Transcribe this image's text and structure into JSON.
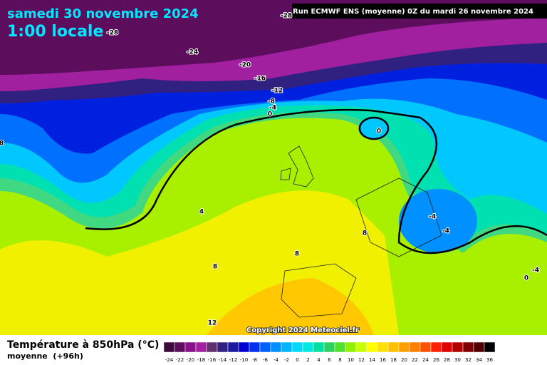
{
  "header": {
    "title": "samedi 30 novembre 2024",
    "subtitle": "1:00 locale",
    "run": "Run ECMWF ENS (moyenne) 0Z du mardi 26 novembre 2024"
  },
  "map": {
    "copyright": "Copyright 2024 Meteociel.fr",
    "contour_labels": [
      -28,
      -28,
      -24,
      -20,
      -16,
      -12,
      -8,
      -4,
      0,
      0,
      4,
      8,
      8,
      8,
      12,
      -4,
      -4,
      -4,
      0,
      8
    ]
  },
  "legend": {
    "title": "Température à 850hPa (°C)",
    "note": "moyenne  (+96h)",
    "scale": [
      {
        "value": -24,
        "color": "#3d0a3d"
      },
      {
        "value": -22,
        "color": "#5c0d5c"
      },
      {
        "value": -20,
        "color": "#8a0f8a"
      },
      {
        "value": -18,
        "color": "#a020a0"
      },
      {
        "value": -16,
        "color": "#603070"
      },
      {
        "value": -14,
        "color": "#302080"
      },
      {
        "value": -12,
        "color": "#1a1aa0"
      },
      {
        "value": -10,
        "color": "#0000d0"
      },
      {
        "value": -8,
        "color": "#0030f0"
      },
      {
        "value": -6,
        "color": "#0060ff"
      },
      {
        "value": -4,
        "color": "#0090ff"
      },
      {
        "value": -2,
        "color": "#00b4ff"
      },
      {
        "value": 0,
        "color": "#00d8ff"
      },
      {
        "value": 2,
        "color": "#00e8e0"
      },
      {
        "value": 4,
        "color": "#00e0a0"
      },
      {
        "value": 6,
        "color": "#30d060"
      },
      {
        "value": 8,
        "color": "#50e030"
      },
      {
        "value": 10,
        "color": "#90f000"
      },
      {
        "value": 12,
        "color": "#c8ff00"
      },
      {
        "value": 14,
        "color": "#ffff00"
      },
      {
        "value": 16,
        "color": "#ffe000"
      },
      {
        "value": 18,
        "color": "#ffc000"
      },
      {
        "value": 20,
        "color": "#ffa000"
      },
      {
        "value": 22,
        "color": "#ff8000"
      },
      {
        "value": 24,
        "color": "#ff5000"
      },
      {
        "value": 26,
        "color": "#ff2000"
      },
      {
        "value": 28,
        "color": "#e00000"
      },
      {
        "value": 30,
        "color": "#b00000"
      },
      {
        "value": 32,
        "color": "#800000"
      },
      {
        "value": 34,
        "color": "#500000"
      },
      {
        "value": 36,
        "color": "#000000"
      }
    ]
  }
}
